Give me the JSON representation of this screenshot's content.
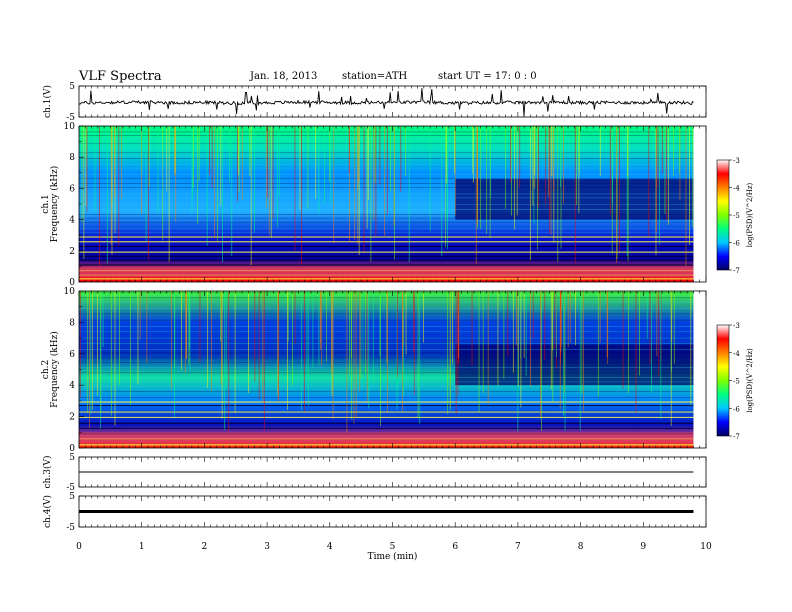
{
  "header": {
    "title": "VLF  Spectra",
    "date": "Jan. 18, 2013",
    "station": "station=ATH",
    "start": "start  UT  =     17: 0  : 0"
  },
  "chart_data": [
    {
      "type": "line",
      "name": "ch.1 waveform",
      "ylabel": "ch.1(V)",
      "ylim": [
        -5,
        5
      ],
      "yticks": [
        "5",
        "-5"
      ],
      "x": [
        0,
        0.5,
        1,
        1.5,
        2,
        2.5,
        3,
        3.5,
        4,
        4.5,
        5,
        5.5,
        6,
        6.5,
        7,
        7.5,
        8,
        8.5,
        9,
        9.5,
        9.8
      ],
      "y": [
        -0.5,
        -0.3,
        -0.2,
        -0.4,
        -0.3,
        -0.5,
        -0.4,
        -0.2,
        -0.3,
        -0.4,
        -0.3,
        -0.2,
        -0.5,
        -0.4,
        -0.3,
        -0.2,
        -0.4,
        -0.3,
        -0.4,
        -0.3,
        -0.5
      ]
    },
    {
      "type": "heatmap",
      "name": "ch.1 spectrogram",
      "ylabel": "ch.1\nFrequency (kHz)",
      "ylim": [
        0,
        10
      ],
      "yticks": [
        "0",
        "2",
        "4",
        "6",
        "8",
        "10"
      ],
      "colorbar": {
        "label": "log(PSD)(V^2/Hz)",
        "range": [
          -7,
          -3
        ],
        "ticks": [
          "-3",
          "-4",
          "-5",
          "-6",
          "-7"
        ]
      }
    },
    {
      "type": "heatmap",
      "name": "ch.2 spectrogram",
      "ylabel": "ch.2\nFrequency (kHz)",
      "ylim": [
        0,
        10
      ],
      "yticks": [
        "0",
        "2",
        "4",
        "6",
        "8",
        "10"
      ],
      "colorbar": {
        "label": "log(PSD)(V^2/Hz)",
        "range": [
          -7,
          -3
        ],
        "ticks": [
          "-3",
          "-4",
          "-5",
          "-6",
          "-7"
        ]
      }
    },
    {
      "type": "line",
      "name": "ch.3 waveform",
      "ylabel": "ch.3(V)",
      "ylim": [
        -5,
        5
      ],
      "yticks": [
        "5",
        "-5"
      ],
      "x": [
        0,
        9.8
      ],
      "y": [
        0,
        0
      ]
    },
    {
      "type": "line",
      "name": "ch.4 waveform",
      "ylabel": "ch.4(V)",
      "ylim": [
        -5,
        5
      ],
      "yticks": [
        "5",
        "-5"
      ],
      "x": [
        0,
        9.8
      ],
      "y": [
        0,
        0
      ]
    }
  ],
  "xaxis": {
    "label": "Time  (min)",
    "range": [
      0,
      10
    ],
    "ticks": [
      "0",
      "1",
      "2",
      "3",
      "4",
      "5",
      "6",
      "7",
      "8",
      "9",
      "10"
    ]
  },
  "colors": {
    "background": "#ffffff",
    "axes": "#000000",
    "colormap": [
      "#000060",
      "#0000ff",
      "#00c8ff",
      "#00ff80",
      "#80ff00",
      "#ffff00",
      "#ff8000",
      "#ff0000",
      "#ffffff"
    ]
  }
}
